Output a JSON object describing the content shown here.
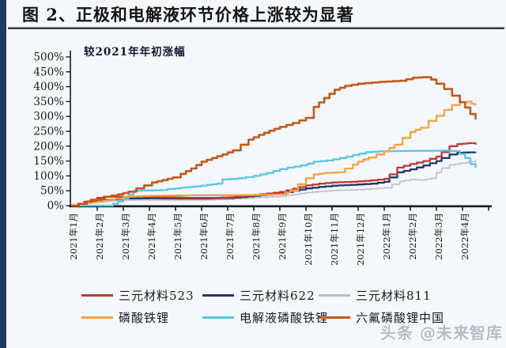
{
  "header": {
    "title": "图 2、正极和电解液环节价格上涨较为显著"
  },
  "watermark": {
    "text": "头条 @未来智库"
  },
  "accent_color": "#1f3864",
  "chart_data": {
    "type": "line",
    "title": "",
    "annotation": "较2021年年初涨幅",
    "xlabel": "",
    "ylabel": "",
    "ylim": [
      0,
      500
    ],
    "y_tick_labels": [
      "0%",
      "50%",
      "100%",
      "150%",
      "200%",
      "250%",
      "300%",
      "350%",
      "400%",
      "450%",
      "500%"
    ],
    "x_tick_labels": [
      "2021年1月",
      "2021年2月",
      "2021年3月",
      "2021年4月",
      "2021年5月",
      "2021年6月",
      "2021年7月",
      "2021年8月",
      "2021年9月",
      "2021年10月",
      "2021年11月",
      "2021年12月",
      "2022年1月",
      "2022年2月",
      "2022年3月",
      "2022年4月"
    ],
    "x_unit": "months since 2021-01-01 (fractional)",
    "grid": false,
    "legend_position": "bottom",
    "series": [
      {
        "name": "三元材料523",
        "color": "#c1382f",
        "points": [
          [
            0,
            0
          ],
          [
            0.25,
            6
          ],
          [
            0.5,
            13
          ],
          [
            0.75,
            20
          ],
          [
            1,
            26
          ],
          [
            1.25,
            30
          ],
          [
            1.75,
            30
          ],
          [
            2.5,
            31
          ],
          [
            3.5,
            28
          ],
          [
            4.5,
            26
          ],
          [
            5.5,
            26
          ],
          [
            6,
            28
          ],
          [
            6.5,
            32
          ],
          [
            7,
            36
          ],
          [
            7.5,
            41
          ],
          [
            8,
            46
          ],
          [
            8.5,
            57
          ],
          [
            9,
            68
          ],
          [
            9.5,
            74
          ],
          [
            10,
            78
          ],
          [
            10.7,
            80
          ],
          [
            11.5,
            85
          ],
          [
            12,
            90
          ],
          [
            12.2,
            105
          ],
          [
            12.5,
            128
          ],
          [
            13,
            140
          ],
          [
            13.5,
            150
          ],
          [
            14,
            165
          ],
          [
            14.2,
            180
          ],
          [
            14.5,
            200
          ],
          [
            14.8,
            207
          ],
          [
            15.2,
            210
          ],
          [
            15.5,
            205
          ]
        ]
      },
      {
        "name": "三元材料622",
        "color": "#1f3864",
        "points": [
          [
            0,
            0
          ],
          [
            0.3,
            5
          ],
          [
            0.6,
            11
          ],
          [
            1,
            17
          ],
          [
            1.5,
            21
          ],
          [
            2,
            24
          ],
          [
            3,
            25
          ],
          [
            4,
            24
          ],
          [
            5,
            24
          ],
          [
            6,
            26
          ],
          [
            6.5,
            29
          ],
          [
            7,
            33
          ],
          [
            7.5,
            37
          ],
          [
            8,
            41
          ],
          [
            8.5,
            50
          ],
          [
            9,
            58
          ],
          [
            9.5,
            63
          ],
          [
            10,
            67
          ],
          [
            10.7,
            70
          ],
          [
            11.5,
            74
          ],
          [
            12,
            80
          ],
          [
            12.2,
            95
          ],
          [
            12.5,
            112
          ],
          [
            13,
            122
          ],
          [
            13.5,
            135
          ],
          [
            14,
            150
          ],
          [
            14.2,
            160
          ],
          [
            14.5,
            172
          ],
          [
            14.8,
            178
          ],
          [
            15.5,
            180
          ]
        ]
      },
      {
        "name": "三元材料811",
        "color": "#b9bdc6",
        "points": [
          [
            0,
            0
          ],
          [
            0.3,
            4
          ],
          [
            0.6,
            8
          ],
          [
            1,
            12
          ],
          [
            1.5,
            16
          ],
          [
            2,
            18
          ],
          [
            3,
            19
          ],
          [
            4,
            19
          ],
          [
            5,
            19
          ],
          [
            6,
            21
          ],
          [
            6.5,
            24
          ],
          [
            7,
            27
          ],
          [
            7.5,
            29
          ],
          [
            8,
            31
          ],
          [
            8.5,
            38
          ],
          [
            9,
            44
          ],
          [
            9.5,
            48
          ],
          [
            10,
            51
          ],
          [
            11,
            54
          ],
          [
            11.5,
            57
          ],
          [
            12,
            60
          ],
          [
            12.3,
            72
          ],
          [
            12.6,
            82
          ],
          [
            13,
            88
          ],
          [
            13.4,
            86
          ],
          [
            13.8,
            92
          ],
          [
            14,
            112
          ],
          [
            14.2,
            126
          ],
          [
            14.5,
            137
          ],
          [
            14.9,
            143
          ],
          [
            15.2,
            148
          ],
          [
            15.5,
            152
          ]
        ]
      },
      {
        "name": "磷酸铁锂",
        "color": "#f2a240",
        "points": [
          [
            0,
            0
          ],
          [
            0.5,
            8
          ],
          [
            1,
            14
          ],
          [
            1.7,
            24
          ],
          [
            2,
            30
          ],
          [
            3,
            33
          ],
          [
            4,
            34
          ],
          [
            5,
            35
          ],
          [
            6,
            35
          ],
          [
            7,
            36
          ],
          [
            8,
            38
          ],
          [
            8.4,
            50
          ],
          [
            8.7,
            72
          ],
          [
            9,
            92
          ],
          [
            9.3,
            105
          ],
          [
            9.7,
            110
          ],
          [
            10.2,
            112
          ],
          [
            10.5,
            125
          ],
          [
            10.8,
            138
          ],
          [
            11,
            148
          ],
          [
            11.4,
            162
          ],
          [
            11.7,
            172
          ],
          [
            12,
            183
          ],
          [
            12.4,
            205
          ],
          [
            12.7,
            228
          ],
          [
            13,
            248
          ],
          [
            13.4,
            262
          ],
          [
            13.7,
            285
          ],
          [
            14,
            302
          ],
          [
            14.3,
            322
          ],
          [
            14.6,
            338
          ],
          [
            14.9,
            348
          ],
          [
            15.2,
            350
          ],
          [
            15.35,
            342
          ],
          [
            15.5,
            337
          ]
        ]
      },
      {
        "name": "电解液磷酸铁锂",
        "color": "#5cc4e6",
        "points": [
          [
            0,
            0
          ],
          [
            1.4,
            0
          ],
          [
            1.6,
            6
          ],
          [
            1.8,
            14
          ],
          [
            2,
            25
          ],
          [
            2.2,
            38
          ],
          [
            2.4,
            50
          ],
          [
            3.4,
            52
          ],
          [
            3.7,
            56
          ],
          [
            4,
            58
          ],
          [
            4.4,
            62
          ],
          [
            4.8,
            65
          ],
          [
            5.2,
            70
          ],
          [
            5.6,
            74
          ],
          [
            5.8,
            88
          ],
          [
            6.4,
            92
          ],
          [
            7,
            100
          ],
          [
            7.5,
            110
          ],
          [
            8,
            123
          ],
          [
            8.3,
            128
          ],
          [
            8.8,
            135
          ],
          [
            9.3,
            148
          ],
          [
            9.8,
            152
          ],
          [
            10.3,
            160
          ],
          [
            10.8,
            170
          ],
          [
            11.3,
            180
          ],
          [
            11.8,
            183
          ],
          [
            13,
            184
          ],
          [
            14.3,
            185
          ],
          [
            14.7,
            183
          ],
          [
            14.9,
            174
          ],
          [
            15.1,
            160
          ],
          [
            15.3,
            140
          ],
          [
            15.5,
            128
          ]
        ]
      },
      {
        "name": "六氟磷酸锂中国",
        "color": "#c2591a",
        "points": [
          [
            0,
            0
          ],
          [
            0.3,
            6
          ],
          [
            0.6,
            14
          ],
          [
            1,
            22
          ],
          [
            1.3,
            30
          ],
          [
            1.8,
            38
          ],
          [
            2.2,
            47
          ],
          [
            2.5,
            58
          ],
          [
            2.8,
            68
          ],
          [
            3.1,
            78
          ],
          [
            3.5,
            86
          ],
          [
            3.9,
            95
          ],
          [
            4.2,
            107
          ],
          [
            4.6,
            125
          ],
          [
            5,
            148
          ],
          [
            5.4,
            160
          ],
          [
            5.8,
            172
          ],
          [
            6.2,
            186
          ],
          [
            6.5,
            205
          ],
          [
            6.8,
            222
          ],
          [
            7.2,
            238
          ],
          [
            7.6,
            252
          ],
          [
            8,
            265
          ],
          [
            8.5,
            278
          ],
          [
            9,
            295
          ],
          [
            9.3,
            332
          ],
          [
            9.7,
            362
          ],
          [
            10.1,
            390
          ],
          [
            10.5,
            403
          ],
          [
            11,
            410
          ],
          [
            11.8,
            416
          ],
          [
            12.6,
            420
          ],
          [
            13.1,
            430
          ],
          [
            13.5,
            432
          ],
          [
            13.8,
            424
          ],
          [
            14,
            410
          ],
          [
            14.3,
            392
          ],
          [
            14.6,
            370
          ],
          [
            14.9,
            348
          ],
          [
            15.1,
            330
          ],
          [
            15.3,
            308
          ],
          [
            15.5,
            290
          ]
        ]
      }
    ]
  }
}
